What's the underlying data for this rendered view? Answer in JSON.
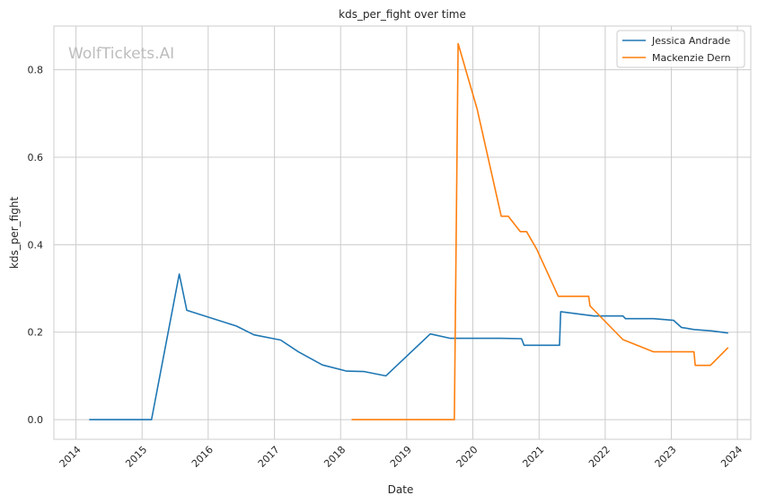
{
  "chart_data": {
    "type": "line",
    "title": "kds_per_fight over time",
    "xlabel": "Date",
    "ylabel": "kds_per_fight",
    "watermark": "WolfTickets.AI",
    "x_ticks": [
      "2014",
      "2015",
      "2016",
      "2017",
      "2018",
      "2019",
      "2020",
      "2021",
      "2022",
      "2023",
      "2024"
    ],
    "y_ticks": [
      "0.0",
      "0.2",
      "0.4",
      "0.6",
      "0.8"
    ],
    "xlim": [
      "2013-09-01",
      "2024-03-15"
    ],
    "ylim": [
      -0.045,
      0.9
    ],
    "grid": true,
    "legend_position": "top-right",
    "series": [
      {
        "name": "Jessica Andrade",
        "color": "#1f77b4",
        "points": [
          [
            "2014-03-15",
            0.0
          ],
          [
            "2015-02-22",
            0.0
          ],
          [
            "2015-07-25",
            0.333
          ],
          [
            "2015-09-05",
            0.25
          ],
          [
            "2016-06-04",
            0.214
          ],
          [
            "2016-09-10",
            0.194
          ],
          [
            "2017-02-04",
            0.182
          ],
          [
            "2017-05-13",
            0.155
          ],
          [
            "2017-09-22",
            0.125
          ],
          [
            "2018-02-03",
            0.111
          ],
          [
            "2018-05-12",
            0.11
          ],
          [
            "2018-09-08",
            0.1
          ],
          [
            "2019-05-11",
            0.196
          ],
          [
            "2019-08-31",
            0.186
          ],
          [
            "2020-06-06",
            0.186
          ],
          [
            "2020-09-26",
            0.185
          ],
          [
            "2020-10-10",
            0.17
          ],
          [
            "2021-04-24",
            0.17
          ],
          [
            "2021-04-30",
            0.247
          ],
          [
            "2021-10-30",
            0.237
          ],
          [
            "2022-04-09",
            0.237
          ],
          [
            "2022-04-23",
            0.231
          ],
          [
            "2022-09-25",
            0.231
          ],
          [
            "2023-01-14",
            0.227
          ],
          [
            "2023-02-25",
            0.211
          ],
          [
            "2023-05-06",
            0.206
          ],
          [
            "2023-08-12",
            0.203
          ],
          [
            "2023-11-11",
            0.198
          ]
        ]
      },
      {
        "name": "Mackenzie Dern",
        "color": "#ff7f0e",
        "points": [
          [
            "2018-03-03",
            0.0
          ],
          [
            "2019-09-21",
            0.0
          ],
          [
            "2019-10-12",
            0.86
          ],
          [
            "2020-01-25",
            0.71
          ],
          [
            "2020-06-06",
            0.465
          ],
          [
            "2020-07-15",
            0.465
          ],
          [
            "2020-09-19",
            0.43
          ],
          [
            "2020-10-24",
            0.43
          ],
          [
            "2020-12-19",
            0.39
          ],
          [
            "2021-04-17",
            0.282
          ],
          [
            "2021-10-02",
            0.282
          ],
          [
            "2021-10-09",
            0.26
          ],
          [
            "2022-04-09",
            0.183
          ],
          [
            "2022-09-25",
            0.155
          ],
          [
            "2023-03-04",
            0.155
          ],
          [
            "2023-05-06",
            0.155
          ],
          [
            "2023-05-13",
            0.124
          ],
          [
            "2023-08-05",
            0.124
          ],
          [
            "2023-11-11",
            0.165
          ]
        ]
      }
    ]
  }
}
